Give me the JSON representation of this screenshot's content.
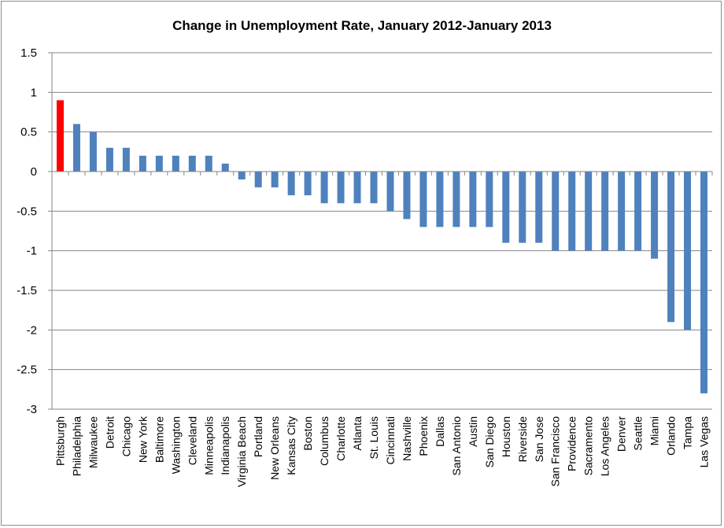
{
  "chart_data": {
    "type": "bar",
    "title": "Change in Unemployment Rate, January 2012-January 2013",
    "xlabel": "",
    "ylabel": "",
    "ylim": [
      -3,
      1.5
    ],
    "yticks": [
      1.5,
      1,
      0.5,
      0,
      -0.5,
      -1,
      -1.5,
      -2,
      -2.5,
      -3
    ],
    "ytick_labels": [
      "1.5",
      "1",
      "0.5",
      "0",
      "-0.5",
      "-1",
      "-1.5",
      "-2",
      "-2.5",
      "-3"
    ],
    "grid": "horizontal",
    "legend": "none",
    "bar_color": "#4f81bd",
    "highlight_color": "#ff0000",
    "highlight_index": 0,
    "categories": [
      "Pittsburgh",
      "Philadelphia",
      "Milwaukee",
      "Detroit",
      "Chicago",
      "New York",
      "Baltimore",
      "Washington",
      "Cleveland",
      "Minneapolis",
      "Indianapolis",
      "Virginia Beach",
      "Portland",
      "New Orleans",
      "Kansas City",
      "Boston",
      "Columbus",
      "Charlotte",
      "Atlanta",
      "St. Louis",
      "Cincinnati",
      "Nashville",
      "Phoenix",
      "Dallas",
      "San Antonio",
      "Austin",
      "San Diego",
      "Houston",
      "Riverside",
      "San Jose",
      "San Francisco",
      "Providence",
      "Sacramento",
      "Los Angeles",
      "Denver",
      "Seattle",
      "Miami",
      "Orlando",
      "Tampa",
      "Las Vegas"
    ],
    "values": [
      0.9,
      0.6,
      0.5,
      0.3,
      0.3,
      0.2,
      0.2,
      0.2,
      0.2,
      0.2,
      0.1,
      -0.1,
      -0.2,
      -0.2,
      -0.3,
      -0.3,
      -0.4,
      -0.4,
      -0.4,
      -0.4,
      -0.5,
      -0.6,
      -0.7,
      -0.7,
      -0.7,
      -0.7,
      -0.7,
      -0.9,
      -0.9,
      -0.9,
      -1.0,
      -1.0,
      -1.0,
      -1.0,
      -1.0,
      -1.0,
      -1.1,
      -1.9,
      -2.0,
      -2.8
    ]
  }
}
